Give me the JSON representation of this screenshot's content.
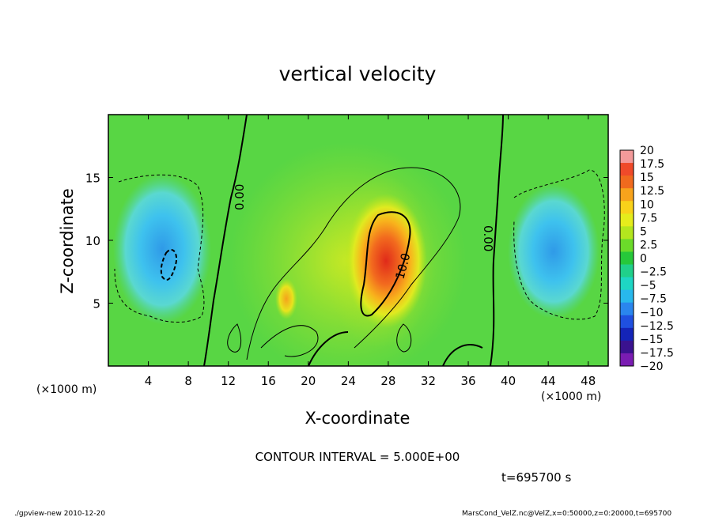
{
  "chart_data": {
    "type": "heatmap",
    "title": "vertical velocity",
    "xlabel": "X-coordinate",
    "ylabel": "Z-coordinate",
    "x_unit_left": "(×1000 m)",
    "x_unit_right": "(×1000 m)",
    "xlim": [
      0,
      50
    ],
    "ylim": [
      0,
      20
    ],
    "x_ticks": [
      4,
      8,
      12,
      16,
      20,
      24,
      28,
      32,
      36,
      40,
      44,
      48
    ],
    "y_ticks": [
      5,
      10,
      15
    ],
    "contour_interval_text": "CONTOUR INTERVAL = 5.000E+00",
    "contour_labels": [
      "0.00",
      "10.0",
      "0.00"
    ],
    "time_text": "t=695700 s",
    "colorbar": {
      "levels": [
        "20",
        "17.5",
        "15",
        "12.5",
        "10",
        "7.5",
        "5",
        "2.5",
        "0",
        "−2.5",
        "−5",
        "−7.5",
        "−10",
        "−12.5",
        "−15",
        "−17.5",
        "−20"
      ],
      "colors": [
        "#f39a9a",
        "#ef4a2a",
        "#f06a1e",
        "#f7a31c",
        "#f9d21a",
        "#e5ec1c",
        "#b3e61e",
        "#6bdb2a",
        "#26c83a",
        "#20d08a",
        "#1ed6c4",
        "#28b8ec",
        "#2a86ee",
        "#1f50e0",
        "#1424b8",
        "#3a128f",
        "#7a1cb2"
      ]
    },
    "features": [
      {
        "kind": "updraft-max",
        "x": 28,
        "z": 8,
        "value": 17
      },
      {
        "kind": "downdraft-min",
        "x": 6,
        "z": 9,
        "value": -9
      },
      {
        "kind": "downdraft-min",
        "x": 43,
        "z": 9,
        "value": -7
      }
    ]
  },
  "footer": {
    "left": "./gpview-new   2010-12-20",
    "right": "MarsCond_VelZ.nc@VelZ,x=0:50000,z=0:20000,t=695700"
  }
}
